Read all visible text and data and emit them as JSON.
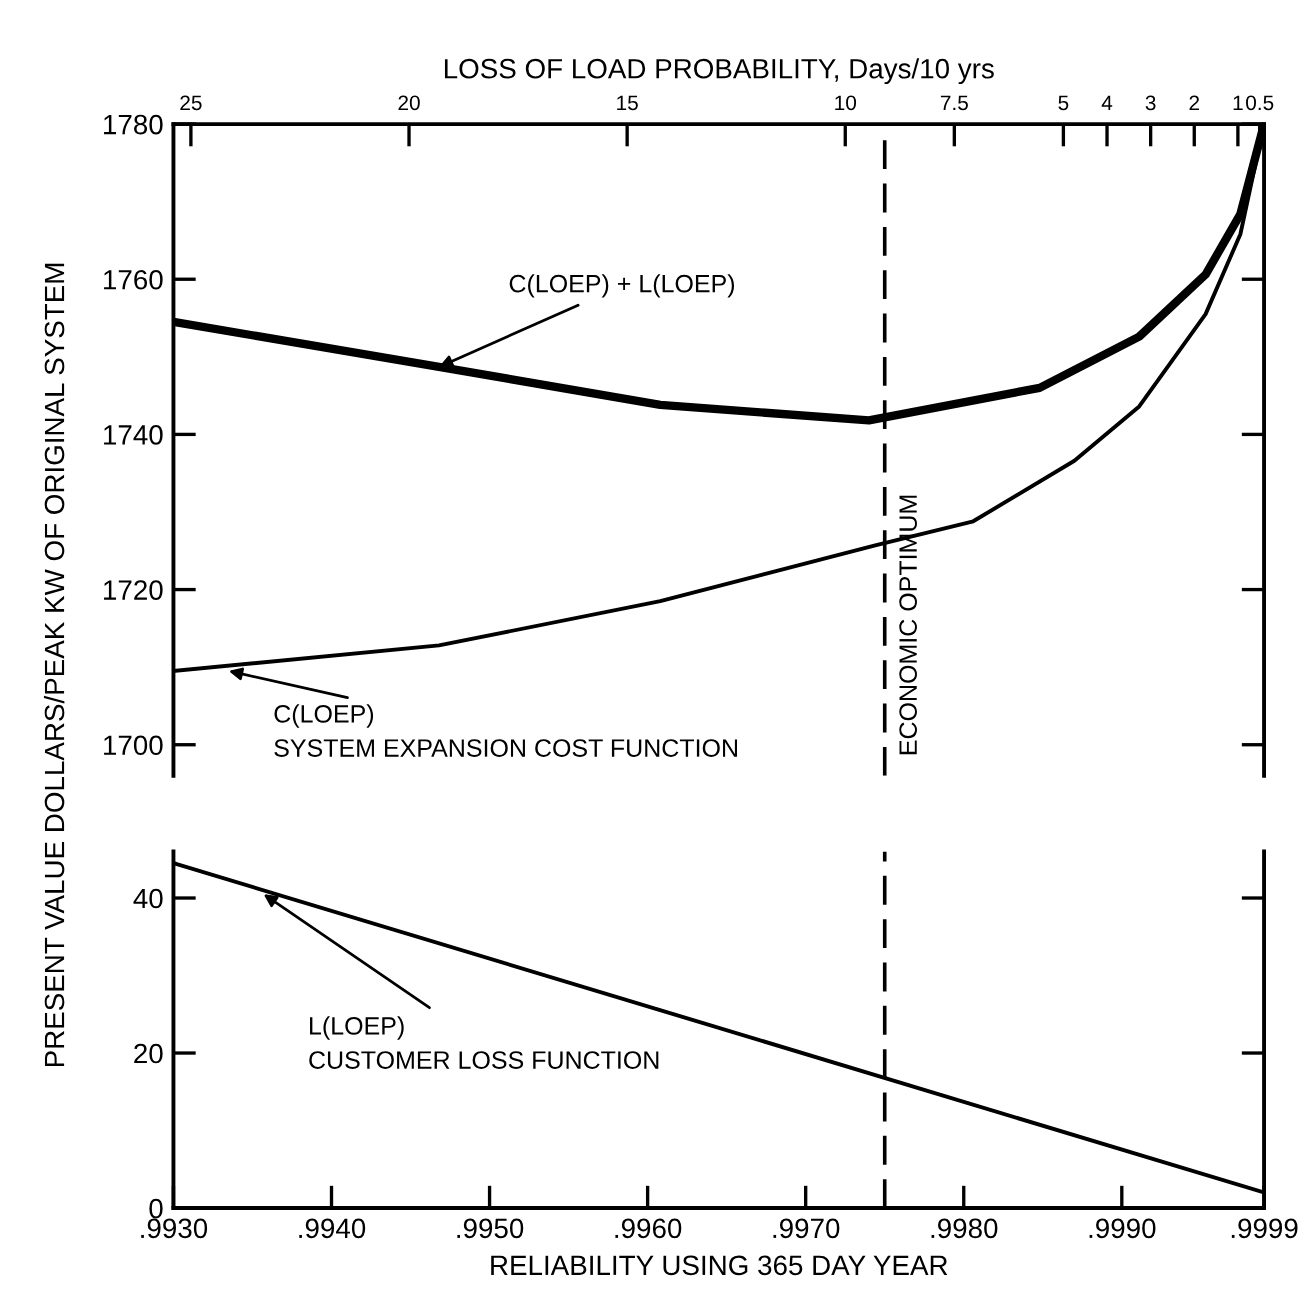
{
  "chart_data": [
    {
      "type": "line",
      "x2label": "LOSS OF LOAD PROBABILITY, Days/10 yrs",
      "ylabel": "PRESENT VALUE DOLLARS/PEAK KW OF ORIGINAL SYSTEM",
      "xlim": [
        0.993,
        0.9999
      ],
      "ylim": [
        1696,
        1780
      ],
      "yticks": [
        1700,
        1720,
        1740,
        1760,
        1780
      ],
      "x2lim": [
        25.4,
        0.4
      ],
      "x2ticks": [
        25,
        20,
        15,
        10,
        7.5,
        5,
        4,
        3,
        2,
        1,
        0.5
      ],
      "series": [
        {
          "color": "#000000",
          "x": [
            0.993,
            0.99468,
            0.99608,
            0.9974,
            0.99848,
            0.99911,
            0.99953,
            0.99975,
            0.9999
          ],
          "values": [
            1754.5,
            1748.7,
            1743.8,
            1741.8,
            1746,
            1752.6,
            1760.6,
            1768.4,
            1780
          ]
        },
        {
          "color": "#000000",
          "x": [
            0.993,
            0.99468,
            0.99608,
            0.99744,
            0.99806,
            0.9987,
            0.99911,
            0.99953,
            0.99975,
            0.9999
          ],
          "values": [
            1709.5,
            1712.8,
            1718.5,
            1725.7,
            1728.8,
            1736.6,
            1743.6,
            1755.5,
            1765.8,
            1780
          ]
        }
      ],
      "ref_lines": [
        {
          "axis": "x",
          "value": 0.9975,
          "label": "ECONOMIC OPTIMUM",
          "line_style": "dashed",
          "color": "#000000"
        }
      ],
      "annotations": [
        {
          "text": "C(LOEP) + L(LOEP)",
          "x": 0.99468,
          "y": 1748.7
        },
        {
          "text": "C(LOEP)\nSYSTEM EXPANSION COST FUNCTION",
          "x": 0.99335,
          "y": 1709.5
        }
      ],
      "grid": false,
      "legend": false
    },
    {
      "type": "line",
      "xlabel": "RELIABILITY USING 365 DAY YEAR",
      "xlim": [
        0.993,
        0.9999
      ],
      "xticks": [
        {
          "value": 0.993,
          "label": ".9930"
        },
        {
          "value": 0.994,
          "label": ".9940"
        },
        {
          "value": 0.995,
          "label": ".9950"
        },
        {
          "value": 0.996,
          "label": ".9960"
        },
        {
          "value": 0.997,
          "label": ".9970"
        },
        {
          "value": 0.998,
          "label": ".9980"
        },
        {
          "value": 0.999,
          "label": ".9990"
        },
        {
          "value": 0.9999,
          "label": ".9999"
        }
      ],
      "ylim": [
        0,
        46
      ],
      "yticks": [
        0,
        20,
        40
      ],
      "series": [
        {
          "color": "#000000",
          "x": [
            0.993,
            0.9999
          ],
          "values": [
            44.5,
            2
          ]
        }
      ],
      "ref_lines": [
        {
          "axis": "x",
          "value": 0.9975,
          "line_style": "dashed",
          "color": "#000000"
        }
      ],
      "annotations": [
        {
          "text": "L(LOEP)\nCUSTOMER LOSS FUNCTION",
          "x": 0.99357,
          "y": 40.5
        }
      ],
      "grid": false,
      "legend": false
    }
  ]
}
